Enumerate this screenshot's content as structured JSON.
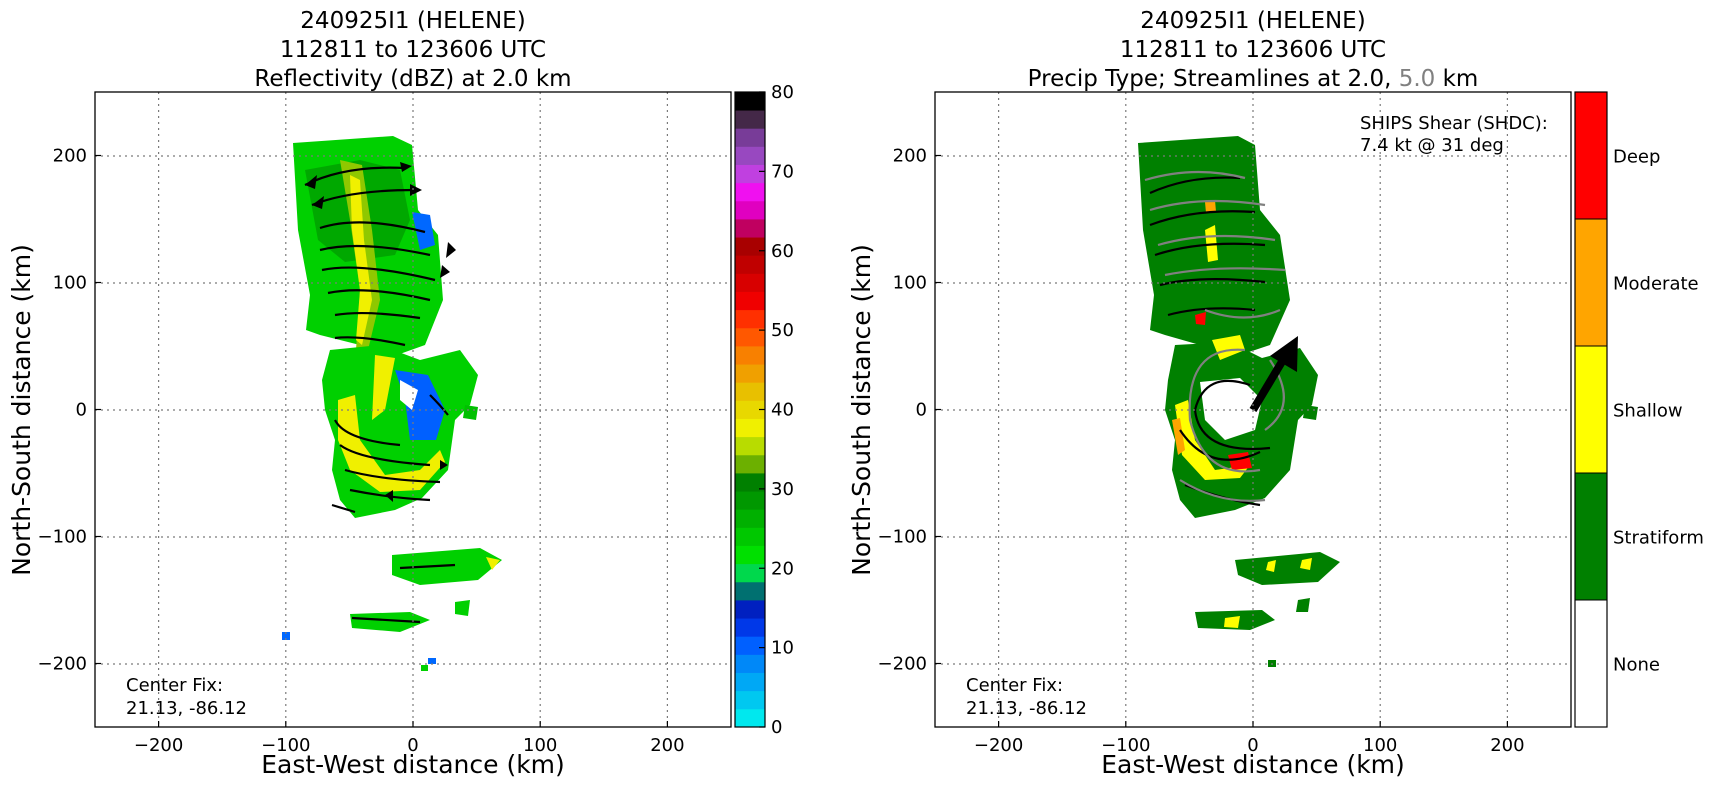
{
  "chart_data": [
    {
      "type": "heatmap",
      "title_lines": [
        "240925I1 (HELENE)",
        "112811 to 123606 UTC",
        "Reflectivity (dBZ) at 2.0 km"
      ],
      "xlabel": "East-West distance (km)",
      "ylabel": "North-South distance (km)",
      "xlim": [
        -250,
        250
      ],
      "ylim": [
        -250,
        250
      ],
      "xticks": [
        -200,
        -100,
        0,
        100,
        200
      ],
      "yticks": [
        -200,
        -100,
        0,
        100,
        200
      ],
      "xtick_labels": [
        "−200",
        "−100",
        "0",
        "100",
        "200"
      ],
      "ytick_labels": [
        "−200",
        "−100",
        "0",
        "100",
        "200"
      ],
      "grid": true,
      "annotation_lines": [
        "Center Fix:",
        "21.13, -86.12"
      ],
      "colorbar": {
        "range": [
          0,
          80
        ],
        "ticks": [
          0,
          10,
          20,
          30,
          40,
          50,
          60,
          70,
          80
        ],
        "colors": [
          "#00e8ee",
          "#00c8f0",
          "#00a8f5",
          "#0088f8",
          "#0060ff",
          "#0038e8",
          "#0020c0",
          "#007070",
          "#00d84c",
          "#00e000",
          "#00c800",
          "#00b000",
          "#009800",
          "#008000",
          "#6cb000",
          "#b8dc00",
          "#f0f000",
          "#e8d800",
          "#e8c000",
          "#f0a000",
          "#f88000",
          "#ff5800",
          "#ff3000",
          "#f00000",
          "#d80000",
          "#c00000",
          "#a80000",
          "#c00060",
          "#e000c0",
          "#f010f0",
          "#c040e0",
          "#9848c0",
          "#783c98",
          "#442848",
          "#000000"
        ]
      }
    },
    {
      "type": "heatmap",
      "title_lines": [
        "240925I1 (HELENE)",
        "112811 to 123606 UTC"
      ],
      "title3": {
        "prefix": "Precip Type; Streamlines at 2.0, ",
        "highlight": "5.0",
        "suffix": " km"
      },
      "xlabel": "East-West distance (km)",
      "ylabel": "North-South distance (km)",
      "xlim": [
        -250,
        250
      ],
      "ylim": [
        -250,
        250
      ],
      "xticks": [
        -200,
        -100,
        0,
        100,
        200
      ],
      "yticks": [
        -200,
        -100,
        0,
        100,
        200
      ],
      "xtick_labels": [
        "−200",
        "−100",
        "0",
        "100",
        "200"
      ],
      "ytick_labels": [
        "−200",
        "−100",
        "0",
        "100",
        "200"
      ],
      "grid": true,
      "annotation_lines": [
        "Center Fix:",
        "21.13, -86.12"
      ],
      "shear_lines": [
        "SHIPS Shear (SHDC):",
        "7.4 kt @ 31 deg"
      ],
      "shear": {
        "speed_kt": 7.4,
        "direction_deg": 31
      },
      "categories": [
        "None",
        "Stratiform",
        "Shallow",
        "Moderate",
        "Deep"
      ],
      "category_colors": [
        "#ffffff",
        "#008000",
        "#ffff00",
        "#ffa500",
        "#ff0000"
      ]
    }
  ]
}
